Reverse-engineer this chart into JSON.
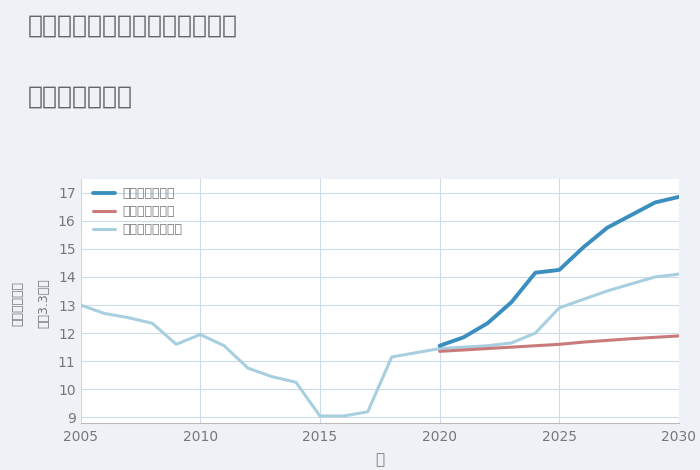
{
  "title_line1": "福岡県みやま市高田町黒崎開の",
  "title_line2": "土地の価格推移",
  "xlabel": "年",
  "ylabel_top": "単価（万円）",
  "ylabel_bottom": "坪（3.3㎡）",
  "ylim": [
    8.8,
    17.5
  ],
  "xlim": [
    2005,
    2030
  ],
  "yticks": [
    9,
    10,
    11,
    12,
    13,
    14,
    15,
    16,
    17
  ],
  "xticks": [
    2005,
    2010,
    2015,
    2020,
    2025,
    2030
  ],
  "background_color": "#eef2f7",
  "plot_bg_color": "#ffffff",
  "normal_scenario": {
    "x": [
      2005,
      2006,
      2007,
      2008,
      2009,
      2010,
      2011,
      2012,
      2013,
      2014,
      2015,
      2016,
      2017,
      2018,
      2019,
      2020,
      2021,
      2022,
      2023,
      2024,
      2025,
      2026,
      2027,
      2028,
      2029,
      2030
    ],
    "y": [
      13.0,
      12.7,
      12.55,
      12.35,
      11.6,
      11.95,
      11.55,
      10.75,
      10.45,
      10.25,
      9.05,
      9.05,
      9.2,
      11.15,
      11.3,
      11.45,
      11.5,
      11.55,
      11.65,
      12.0,
      12.9,
      13.2,
      13.5,
      13.75,
      14.0,
      14.1
    ],
    "color": "#a8cfe0",
    "linewidth": 2.2,
    "label": "ノーマルシナリオ"
  },
  "good_scenario": {
    "x": [
      2020,
      2021,
      2022,
      2023,
      2024,
      2025,
      2026,
      2027,
      2028,
      2029,
      2030
    ],
    "y": [
      11.55,
      11.85,
      12.35,
      13.1,
      14.15,
      14.25,
      15.05,
      15.75,
      16.2,
      16.65,
      16.85
    ],
    "color": "#3a8fbf",
    "linewidth": 2.8,
    "label": "グッドシナリオ"
  },
  "bad_scenario": {
    "x": [
      2020,
      2021,
      2022,
      2023,
      2024,
      2025,
      2026,
      2027,
      2028,
      2029,
      2030
    ],
    "y": [
      11.35,
      11.4,
      11.45,
      11.5,
      11.55,
      11.6,
      11.68,
      11.74,
      11.8,
      11.85,
      11.9
    ],
    "color": "#c97a7a",
    "linewidth": 2.2,
    "label": "バッドシナリオ"
  },
  "grid_color": "#cddbe8",
  "title_color": "#666666",
  "tick_color": "#777777",
  "label_color": "#777777"
}
